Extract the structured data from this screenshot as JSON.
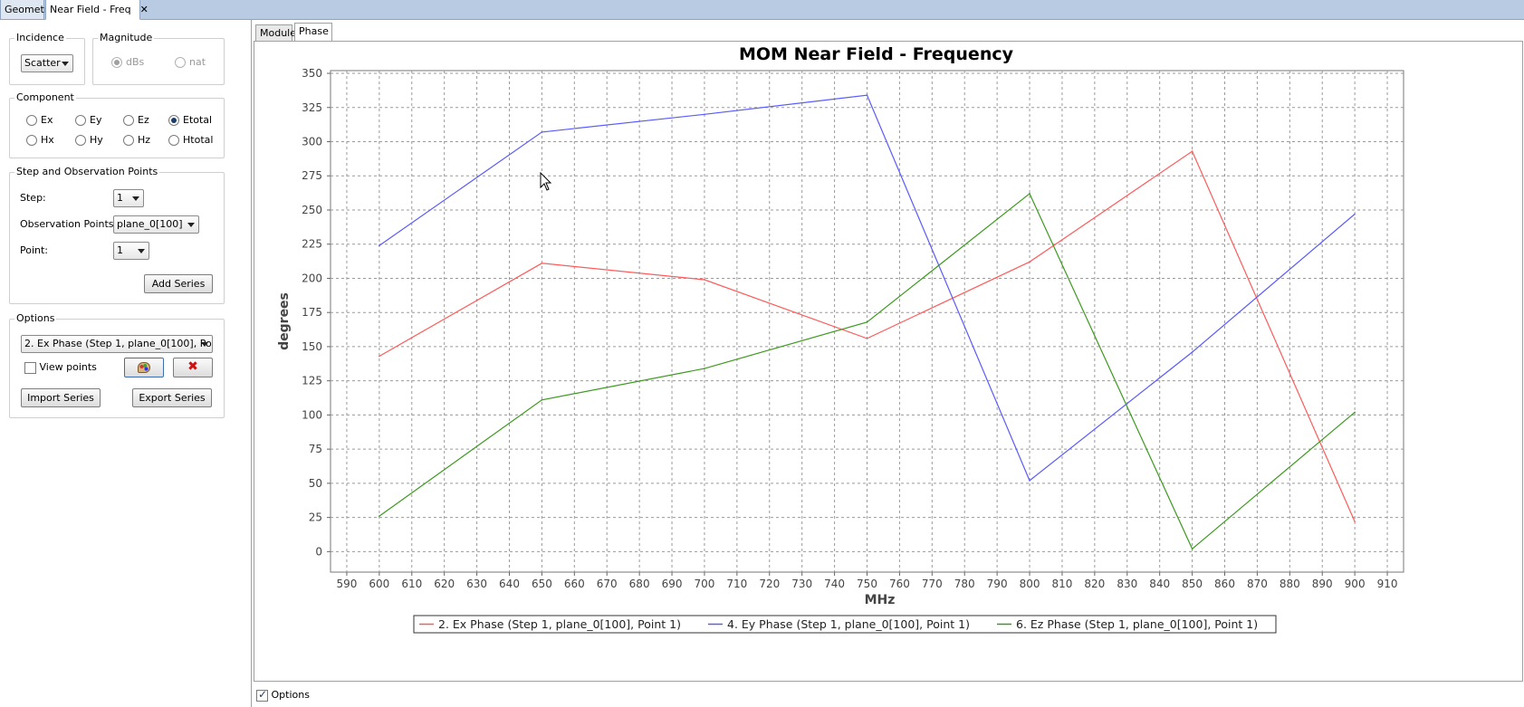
{
  "top_tabs": [
    {
      "label": "Geometry"
    },
    {
      "label": "Near Field - Freq"
    }
  ],
  "left_panel": {
    "incidence": {
      "title": "Incidence",
      "value": "Scatter"
    },
    "magnitude": {
      "title": "Magnitude",
      "options": [
        "dBs",
        "nat"
      ],
      "selected": "dBs",
      "enabled": false
    },
    "component": {
      "title": "Component",
      "options": [
        "Ex",
        "Ey",
        "Ez",
        "Etotal",
        "Hx",
        "Hy",
        "Hz",
        "Htotal"
      ],
      "selected": "Etotal"
    },
    "step_obs": {
      "title": "Step and Observation Points",
      "step_label": "Step:",
      "step_value": "1",
      "obs_label": "Observation Points:",
      "obs_value": "plane_0[100]",
      "point_label": "Point:",
      "point_value": "1",
      "add_series": "Add Series"
    },
    "options": {
      "title": "Options",
      "series_select": "2. Ex Phase (Step 1, plane_0[100], Poi...",
      "view_points": "View points",
      "view_points_checked": false,
      "import_series": "Import Series",
      "export_series": "Export Series"
    }
  },
  "sub_tabs": [
    {
      "label": "Module"
    },
    {
      "label": "Phase"
    }
  ],
  "bottom": {
    "options_label": "Options",
    "options_checked": true
  },
  "chart_data": {
    "type": "line",
    "title": "MOM Near Field - Frequency",
    "xlabel": "MHz",
    "ylabel": "degrees",
    "xlim": [
      585,
      915
    ],
    "ylim": [
      -15,
      352
    ],
    "xticks": [
      590,
      600,
      610,
      620,
      630,
      640,
      650,
      660,
      670,
      680,
      690,
      700,
      710,
      720,
      730,
      740,
      750,
      760,
      770,
      780,
      790,
      800,
      810,
      820,
      830,
      840,
      850,
      860,
      870,
      880,
      890,
      900,
      910
    ],
    "yticks": [
      0,
      25,
      50,
      75,
      100,
      125,
      150,
      175,
      200,
      225,
      250,
      275,
      300,
      325,
      350
    ],
    "grid": true,
    "legend_position": "bottom",
    "x": [
      600,
      650,
      700,
      750,
      800,
      850,
      900
    ],
    "series": [
      {
        "name": "2. Ex Phase (Step 1, plane_0[100], Point 1)",
        "color": "#ff5a5a",
        "values": [
          143,
          211,
          199,
          156,
          212,
          293,
          22
        ]
      },
      {
        "name": "4. Ey Phase (Step 1, plane_0[100], Point 1)",
        "color": "#5a5aff",
        "values": [
          224,
          307,
          320,
          334,
          52,
          146,
          247
        ]
      },
      {
        "name": "6. Ez Phase (Step 1, plane_0[100], Point 1)",
        "color": "#3c9a1e",
        "values": [
          26,
          111,
          134,
          168,
          262,
          2,
          102
        ]
      }
    ]
  }
}
